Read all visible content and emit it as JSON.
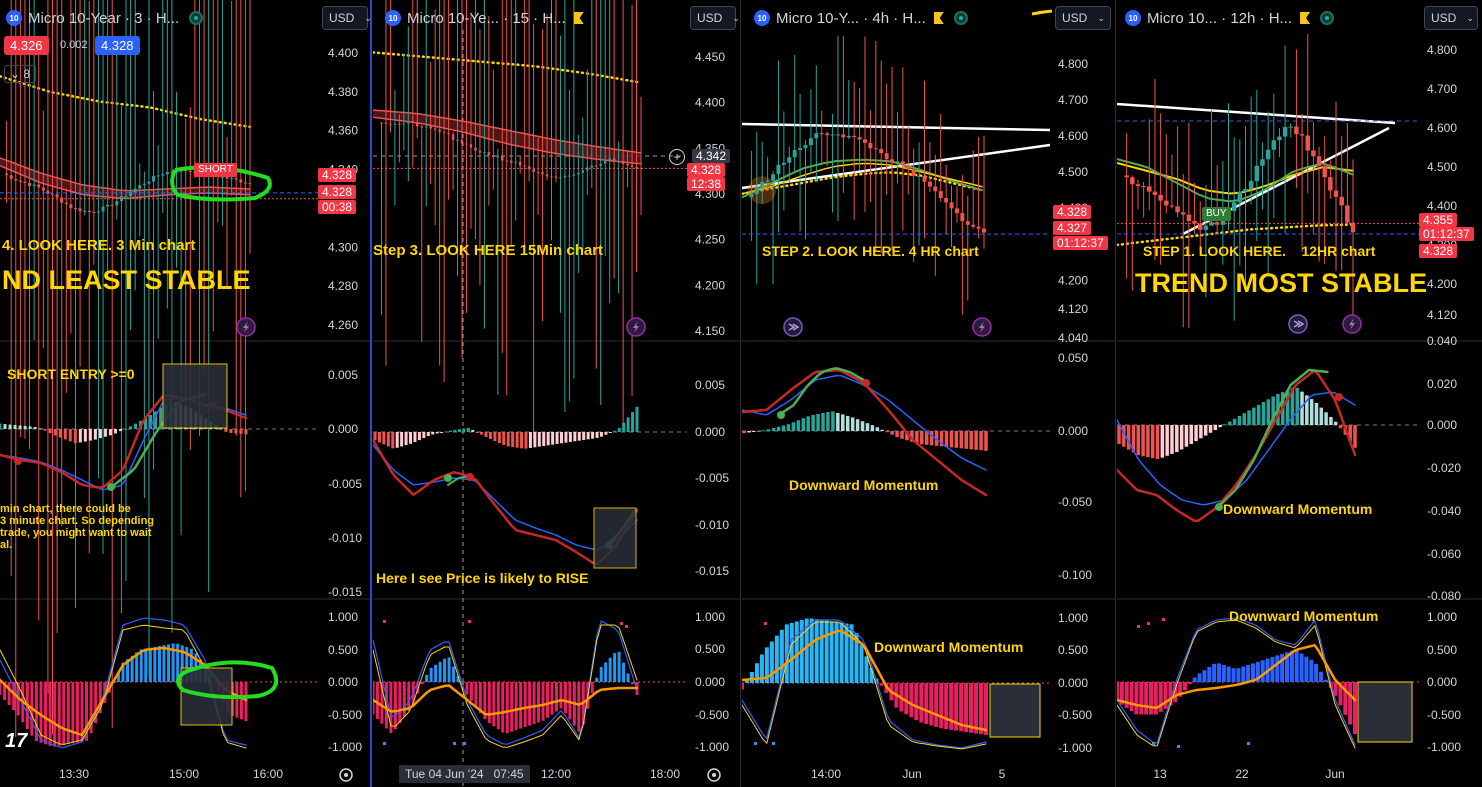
{
  "panels": [
    {
      "id": "p3m",
      "left": 0,
      "width": 372,
      "title": "Micro 10-Year · 3 · H...",
      "currency": "USD",
      "price_axis": {
        "ticks": [
          "4.400",
          "4.380",
          "4.360",
          "4.340",
          "4.300",
          "4.280",
          "4.260"
        ]
      },
      "macd_axis": {
        "ticks": [
          "0.005",
          "0.000",
          "-0.005",
          "-0.010",
          "-0.015"
        ]
      },
      "osc_axis": {
        "ticks": [
          "1.000",
          "0.500",
          "0.000",
          "-0.500",
          "-1.000"
        ]
      },
      "time_axis": {
        "ticks": [
          "13:30",
          "15:00",
          "16:00"
        ]
      },
      "tags": [
        {
          "text": "4.328"
        },
        {
          "text": "4.328"
        },
        {
          "text": "00:38"
        }
      ],
      "bid": "4.326",
      "spread": "0.002",
      "ask": "4.328",
      "stepper": "8",
      "short_label": "SHORT",
      "annotations": {
        "step": "4. LOOK HERE. 3 Min chart",
        "trend": "ND LEAST STABLE",
        "entry": "SHORT ENTRY >=0",
        "note": [
          "min chart, there could be",
          "3 minute chart. So depending",
          "trade, you might want to wait",
          "al."
        ]
      }
    },
    {
      "id": "p15m",
      "left": 373,
      "width": 368,
      "title": "Micro 10-Ye... · 15 · H...",
      "currency": "USD",
      "price_axis": {
        "ticks": [
          "4.450",
          "4.400",
          "4.350",
          "4.300",
          "4.250",
          "4.200",
          "4.150"
        ]
      },
      "macd_axis": {
        "ticks": [
          "0.005",
          "0.000",
          "-0.005",
          "-0.010",
          "-0.015"
        ]
      },
      "osc_axis": {
        "ticks": [
          "1.000",
          "0.500",
          "0.000",
          "-0.500",
          "-1.000"
        ]
      },
      "time_axis": {
        "ticks": [
          "12:00",
          "18:00"
        ],
        "crosshair": "Tue 04 Jun '24   07:45"
      },
      "tags": [
        {
          "text": "4.342"
        },
        {
          "text": "4.328"
        },
        {
          "text": "12:38"
        }
      ],
      "annotations": {
        "step": "Step 3. LOOK HERE 15Min chart",
        "rise": "Here I see Price is likely to RISE"
      }
    },
    {
      "id": "p4h",
      "left": 742,
      "width": 374,
      "title": "Micro 10-Y... · 4h · H...",
      "currency": "USD",
      "price_axis": {
        "ticks": [
          "4.800",
          "4.700",
          "4.600",
          "4.500",
          "4.400",
          "4.300",
          "4.200",
          "4.120",
          "4.040"
        ]
      },
      "macd_axis": {
        "ticks": [
          "0.050",
          "0.000",
          "-0.050",
          "-0.100"
        ]
      },
      "osc_axis": {
        "ticks": [
          "1.000",
          "0.500",
          "0.000",
          "-0.500",
          "-1.000"
        ]
      },
      "time_axis": {
        "ticks": [
          "14:00",
          "Jun",
          "5"
        ]
      },
      "tags": [
        {
          "text": "4.328"
        },
        {
          "text": "4.327"
        },
        {
          "text": "01:12:37"
        }
      ],
      "annotations": {
        "step": "STEP 2. LOOK HERE. 4 HR chart",
        "down1": "Downward Momentum",
        "down2": "Downward Momentum"
      }
    },
    {
      "id": "p12h",
      "left": 1117,
      "width": 365,
      "title": "Micro 10... · 12h · H...",
      "currency": "USD",
      "price_axis": {
        "ticks": [
          "4.800",
          "4.700",
          "4.600",
          "4.500",
          "4.400",
          "4.300",
          "4.200",
          "4.120"
        ]
      },
      "macd_axis": {
        "ticks": [
          "0.040",
          "0.020",
          "0.000",
          "-0.020",
          "-0.040",
          "-0.060",
          "-0.080"
        ]
      },
      "osc_axis": {
        "ticks": [
          "1.000",
          "0.500",
          "0.000",
          "-0.500",
          "-1.000"
        ]
      },
      "time_axis": {
        "ticks": [
          "13",
          "22",
          "Jun"
        ]
      },
      "tags": [
        {
          "text": "4.355"
        },
        {
          "text": "01:12:37"
        },
        {
          "text": "4.328"
        }
      ],
      "buy_label": "BUY",
      "annotations": {
        "step": "STEP 1. LOOK HERE.    12HR chart",
        "trend": "TREND MOST STABLE",
        "down1": "Downward Momentum",
        "down2": "Downward Momentum"
      }
    }
  ],
  "chart_data": [
    {
      "type": "line",
      "panel": "3m",
      "series": [
        {
          "values": [
            4.345,
            4.338,
            4.333,
            4.328,
            4.322,
            4.318,
            4.322,
            4.33,
            4.337,
            4.34,
            4.338,
            4.332,
            4.328
          ]
        }
      ]
    },
    {
      "type": "line",
      "panel": "15m",
      "series": [
        {
          "values": [
            4.382,
            4.378,
            4.373,
            4.37,
            4.36,
            4.345,
            4.338,
            4.33,
            4.322,
            4.318,
            4.325,
            4.335,
            4.328
          ]
        }
      ]
    },
    {
      "type": "line",
      "panel": "4h",
      "series": [
        {
          "values": [
            4.44,
            4.48,
            4.54,
            4.6,
            4.61,
            4.58,
            4.54,
            4.5,
            4.46,
            4.4,
            4.35,
            4.31,
            4.328
          ]
        }
      ]
    },
    {
      "type": "line",
      "panel": "12h",
      "series": [
        {
          "values": [
            4.48,
            4.43,
            4.41,
            4.37,
            4.34,
            4.36,
            4.43,
            4.48,
            4.56,
            4.6,
            4.52,
            4.42,
            4.328
          ]
        }
      ]
    }
  ],
  "colors": {
    "up": "#26a69a",
    "down": "#ef5350",
    "ema": "#ffd600",
    "tag_red": "#f23645",
    "blue": "#2962ff",
    "green_mark": "#22dd22",
    "white": "#ffffff"
  }
}
